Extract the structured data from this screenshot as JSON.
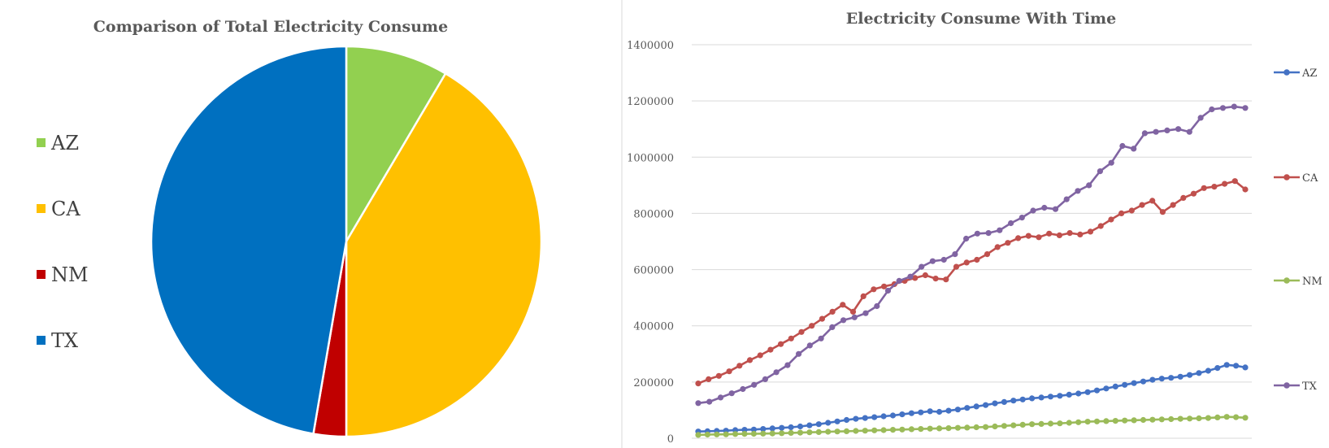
{
  "chart_data": [
    {
      "type": "pie",
      "title": "Comparison of Total Electricity Consume",
      "categories": [
        "AZ",
        "CA",
        "NM",
        "TX"
      ],
      "values": [
        8.5,
        41.5,
        2.7,
        47.3
      ],
      "colors": [
        "#92d050",
        "#ffc000",
        "#c00000",
        "#0070c0"
      ],
      "legend_position": "left"
    },
    {
      "type": "line",
      "title": "Electricity Consume With Time",
      "xlabel": "",
      "ylabel": "",
      "ylim": [
        0,
        1400000
      ],
      "yticks": [
        "0",
        "200000",
        "400000",
        "600000",
        "800000",
        "1000000",
        "1200000",
        "1400000"
      ],
      "legend_position": "right",
      "series": [
        {
          "name": "AZ",
          "color": "#4472c4",
          "values": [
            24000,
            25000,
            26000,
            27000,
            29000,
            30000,
            31000,
            33000,
            35000,
            37000,
            39000,
            42000,
            46000,
            50000,
            55000,
            60000,
            65000,
            69000,
            72000,
            75000,
            78000,
            81000,
            85000,
            89000,
            92000,
            96000,
            94000,
            98000,
            102000,
            108000,
            113000,
            118000,
            124000,
            129000,
            134000,
            138000,
            142000,
            145000,
            148000,
            151000,
            155000,
            159000,
            164000,
            170000,
            177000,
            184000,
            190000,
            196000,
            202000,
            208000,
            212000,
            215000,
            219000,
            225000,
            232000,
            240000,
            250000,
            261000,
            258000,
            252000
          ]
        },
        {
          "name": "CA",
          "color": "#c0504d",
          "values": [
            195000,
            210000,
            222000,
            238000,
            258000,
            278000,
            295000,
            315000,
            335000,
            355000,
            378000,
            400000,
            425000,
            450000,
            475000,
            450000,
            505000,
            530000,
            540000,
            548000,
            560000,
            570000,
            580000,
            568000,
            565000,
            610000,
            625000,
            635000,
            655000,
            680000,
            695000,
            712000,
            720000,
            715000,
            728000,
            722000,
            730000,
            725000,
            735000,
            755000,
            778000,
            800000,
            810000,
            830000,
            845000,
            805000,
            830000,
            855000,
            870000,
            890000,
            895000,
            905000,
            915000,
            885000
          ]
        },
        {
          "name": "NM",
          "color": "#9bbb59",
          "values": [
            12000,
            13000,
            13500,
            14000,
            15000,
            15500,
            16000,
            16500,
            17000,
            18000,
            19000,
            20000,
            21000,
            22000,
            23000,
            24000,
            25000,
            26000,
            27000,
            28000,
            29000,
            30000,
            31000,
            32000,
            33000,
            34000,
            35000,
            36000,
            37000,
            38000,
            39000,
            40000,
            42000,
            44000,
            46000,
            48000,
            50000,
            51000,
            52000,
            53000,
            55000,
            57000,
            59000,
            60000,
            61000,
            62000,
            63000,
            64000,
            65000,
            66000,
            67000,
            68000,
            69000,
            70000,
            71000,
            72000,
            74000,
            76000,
            75000,
            73000
          ]
        },
        {
          "name": "TX",
          "color": "#8064a2",
          "values": [
            125000,
            130000,
            145000,
            160000,
            175000,
            190000,
            210000,
            235000,
            260000,
            300000,
            330000,
            355000,
            395000,
            420000,
            430000,
            445000,
            470000,
            525000,
            560000,
            575000,
            610000,
            630000,
            635000,
            655000,
            710000,
            728000,
            730000,
            740000,
            765000,
            785000,
            810000,
            820000,
            815000,
            850000,
            880000,
            900000,
            950000,
            980000,
            1040000,
            1030000,
            1085000,
            1090000,
            1095000,
            1100000,
            1090000,
            1140000,
            1170000,
            1175000,
            1180000,
            1175000
          ]
        }
      ]
    }
  ]
}
